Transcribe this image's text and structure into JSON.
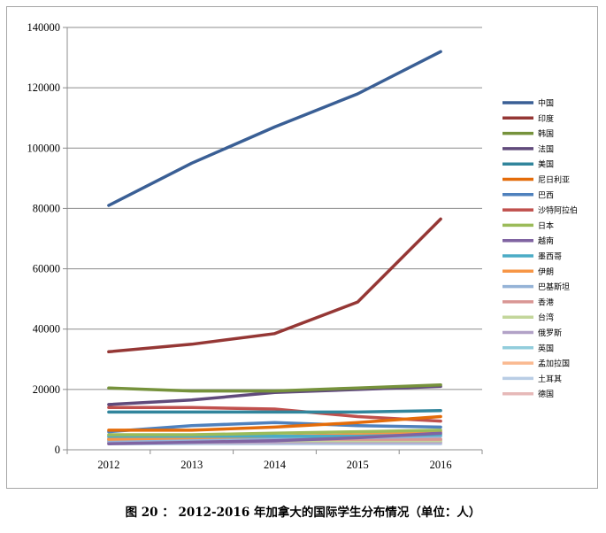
{
  "caption": "图 20 ： 2012-2016 年加拿大的国际学生分布情况（单位：人）",
  "chart_data": {
    "type": "line",
    "title": "",
    "xlabel": "",
    "ylabel": "",
    "x": [
      "2012",
      "2013",
      "2014",
      "2015",
      "2016"
    ],
    "ylim": [
      0,
      140000
    ],
    "yticks": [
      "0",
      "20000",
      "40000",
      "60000",
      "80000",
      "100000",
      "120000",
      "140000"
    ],
    "grid": "horizontal",
    "legend_position": "right",
    "series": [
      {
        "name": "中国",
        "color": "#3a5f95",
        "values": [
          81000,
          95000,
          107000,
          118000,
          132000
        ]
      },
      {
        "name": "印度",
        "color": "#953735",
        "values": [
          32500,
          35000,
          38500,
          49000,
          76500
        ]
      },
      {
        "name": "韩国",
        "color": "#76923c",
        "values": [
          20500,
          19500,
          19500,
          20500,
          21500
        ]
      },
      {
        "name": "法国",
        "color": "#604a7b",
        "values": [
          15000,
          16500,
          19000,
          20000,
          21000
        ]
      },
      {
        "name": "美国",
        "color": "#31859c",
        "values": [
          12500,
          12500,
          12500,
          12500,
          13000
        ]
      },
      {
        "name": "尼日利亚",
        "color": "#e46c0a",
        "values": [
          6500,
          6500,
          7500,
          9000,
          11000
        ]
      },
      {
        "name": "巴西",
        "color": "#4f81bd",
        "values": [
          6000,
          8000,
          9000,
          8000,
          7500
        ]
      },
      {
        "name": "沙特阿拉伯",
        "color": "#c0504d",
        "values": [
          14000,
          14000,
          13500,
          11000,
          9500
        ]
      },
      {
        "name": "日本",
        "color": "#9bbb59",
        "values": [
          5000,
          5000,
          5500,
          6000,
          6500
        ]
      },
      {
        "name": "越南",
        "color": "#8064a2",
        "values": [
          2000,
          2500,
          3000,
          4000,
          5500
        ]
      },
      {
        "name": "墨西哥",
        "color": "#4bacc6",
        "values": [
          4500,
          4500,
          4500,
          4500,
          5000
        ]
      },
      {
        "name": "伊朗",
        "color": "#f79646",
        "values": [
          3500,
          4000,
          4500,
          5000,
          6000
        ]
      },
      {
        "name": "巴基斯坦",
        "color": "#95b3d7",
        "values": [
          3000,
          3500,
          4000,
          4000,
          4500
        ]
      },
      {
        "name": "香港",
        "color": "#d99694",
        "values": [
          3500,
          3500,
          3500,
          3500,
          3500
        ]
      },
      {
        "name": "台湾",
        "color": "#c3d69b",
        "values": [
          3000,
          3000,
          3000,
          3000,
          3000
        ]
      },
      {
        "name": "俄罗斯",
        "color": "#b2a2c7",
        "values": [
          2500,
          2500,
          2500,
          2500,
          2500
        ]
      },
      {
        "name": "英国",
        "color": "#92cddc",
        "values": [
          4000,
          4000,
          4000,
          3500,
          3500
        ]
      },
      {
        "name": "孟加拉国",
        "color": "#fab990",
        "values": [
          2500,
          2500,
          2500,
          3000,
          3000
        ]
      },
      {
        "name": "土耳其",
        "color": "#b9cde5",
        "values": [
          2000,
          2000,
          2000,
          2000,
          2000
        ]
      },
      {
        "name": "德国",
        "color": "#e6b9b8",
        "values": [
          2500,
          2000,
          2000,
          2000,
          2000
        ]
      }
    ]
  }
}
